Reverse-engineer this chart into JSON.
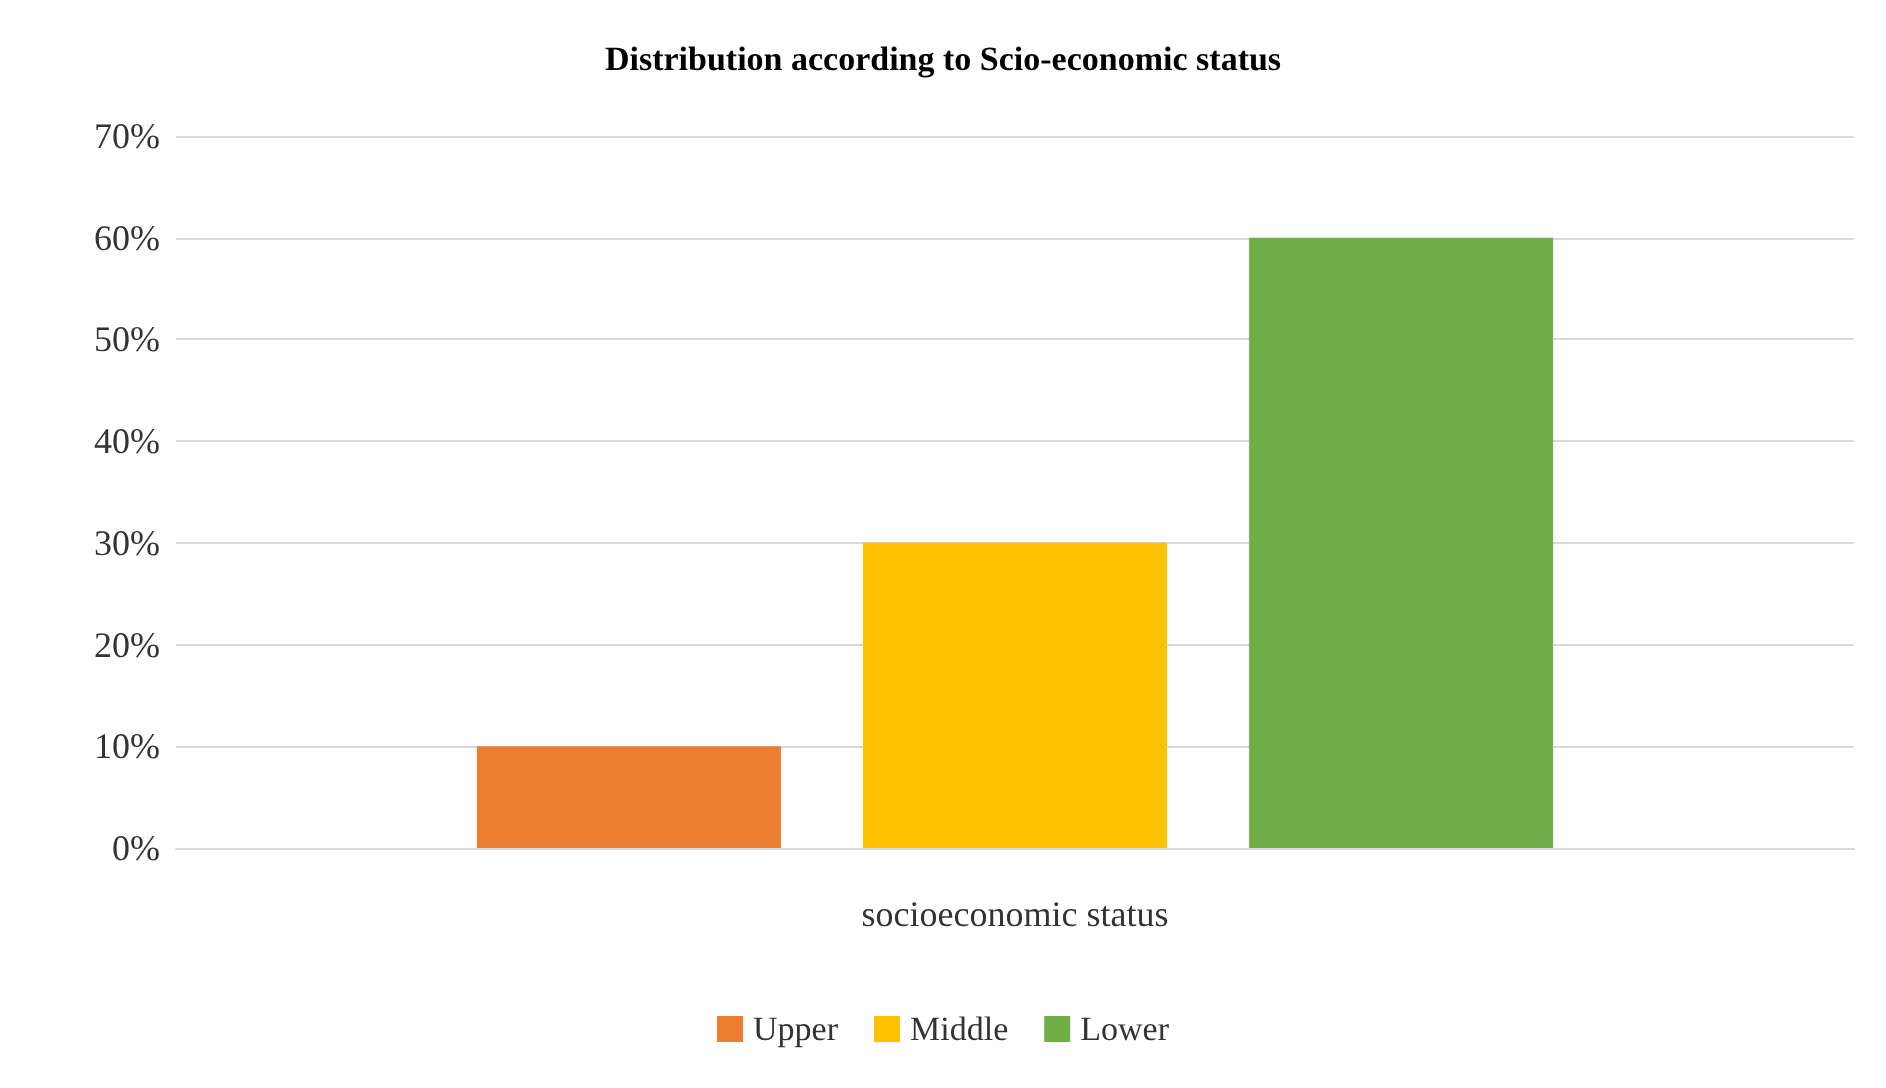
{
  "chart_data": {
    "type": "bar",
    "title": "Distribution according to Scio-economic status",
    "categories": [
      "socioeconomic status"
    ],
    "series": [
      {
        "name": "Upper",
        "color": "#ed7d31",
        "values": [
          10
        ]
      },
      {
        "name": "Middle",
        "color": "#ffc000",
        "values": [
          30
        ]
      },
      {
        "name": "Lower",
        "color": "#70ad47",
        "values": [
          60
        ]
      }
    ],
    "ylim": [
      0,
      70
    ],
    "yticks": [
      {
        "value": 0,
        "label": "0%"
      },
      {
        "value": 10,
        "label": "10%"
      },
      {
        "value": 20,
        "label": "20%"
      },
      {
        "value": 30,
        "label": "30%"
      },
      {
        "value": 40,
        "label": "40%"
      },
      {
        "value": 50,
        "label": "50%"
      },
      {
        "value": 60,
        "label": "60%"
      },
      {
        "value": 70,
        "label": "70%"
      }
    ],
    "grid": "y",
    "legend": "bottom"
  }
}
